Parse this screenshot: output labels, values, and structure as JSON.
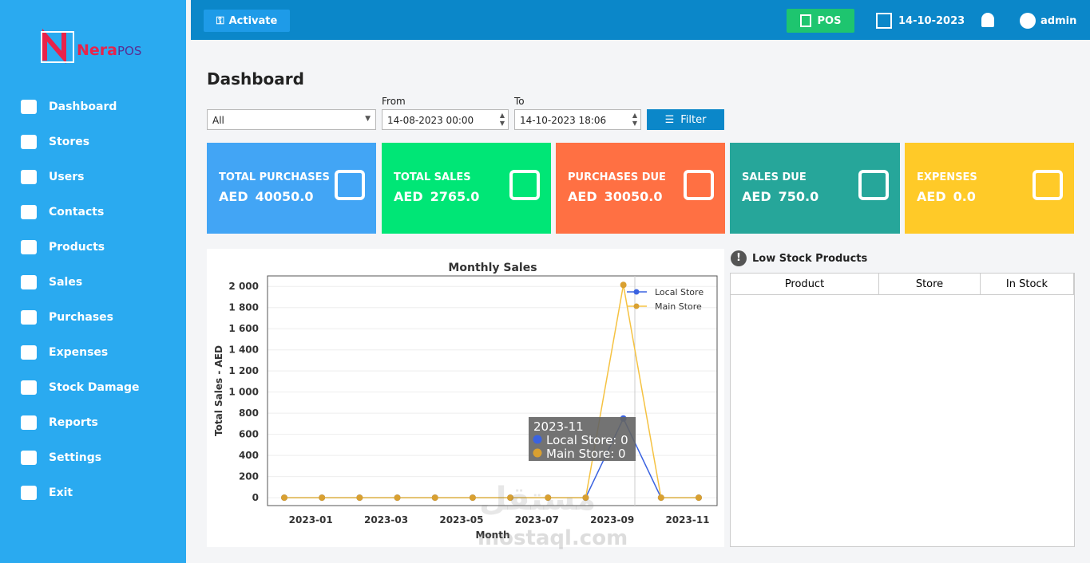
{
  "logo": {
    "brand": "Nera",
    "suffix": "POS"
  },
  "menu": [
    "Dashboard",
    "Stores",
    "Users",
    "Contacts",
    "Products",
    "Sales",
    "Purchases",
    "Expenses",
    "Stock Damage",
    "Reports",
    "Settings",
    "Exit"
  ],
  "topbar": {
    "activate": "Activate",
    "pos": "POS",
    "date": "14-10-2023",
    "user": "admin"
  },
  "page_title": "Dashboard",
  "filters": {
    "store": "All",
    "from_label": "From",
    "from": "14-08-2023 00:00",
    "to_label": "To",
    "to": "14-10-2023 18:06",
    "button": "Filter"
  },
  "cards": [
    {
      "label": "TOTAL PURCHASES",
      "currency": "AED",
      "amount": "40050.0",
      "color": "#42a5f5"
    },
    {
      "label": "TOTAL SALES",
      "currency": "AED",
      "amount": "2765.0",
      "color": "#00e676"
    },
    {
      "label": "PURCHASES DUE",
      "currency": "AED",
      "amount": "30050.0",
      "color": "#ff7043"
    },
    {
      "label": "SALES DUE",
      "currency": "AED",
      "amount": "750.0",
      "color": "#26a69a"
    },
    {
      "label": "EXPENSES",
      "currency": "AED",
      "amount": "0.0",
      "color": "#ffca28"
    }
  ],
  "chart_data": {
    "type": "line",
    "title": "Monthly Sales",
    "x_label": "Month",
    "y_label": "Total Sales - AED",
    "categories": [
      null,
      "2023-01",
      null,
      "2023-03",
      null,
      "2023-05",
      null,
      "2023-07",
      null,
      "2023-09",
      null,
      "2023-11"
    ],
    "series": [
      {
        "name": "Local Store",
        "color": "#3b63e0",
        "values": [
          0,
          0,
          0,
          0,
          0,
          0,
          0,
          0,
          0,
          750,
          0,
          0
        ]
      },
      {
        "name": "Main Store",
        "color": "#f5c242",
        "values": [
          0,
          0,
          0,
          0,
          0,
          0,
          0,
          0,
          0,
          2015,
          0,
          0
        ]
      }
    ],
    "ylim": [
      -75,
      2100
    ],
    "yticks": [
      0,
      200,
      400,
      600,
      800,
      {
        "value": 1000,
        "label": "1 000"
      },
      {
        "value": 1200,
        "label": "1 200"
      },
      {
        "value": 1400,
        "label": "1 400"
      },
      {
        "value": 1600,
        "label": "1 600"
      },
      {
        "value": 1800,
        "label": "1 800"
      },
      {
        "value": 2000,
        "label": "2 000"
      }
    ],
    "grid": true,
    "legend": "upper right"
  },
  "chart_tooltip": {
    "title": "2023-11",
    "items": [
      "Local Store: 0",
      "Main Store: 0"
    ]
  },
  "low_stock": {
    "title": "Low Stock Products",
    "columns": [
      "Product",
      "Store",
      "In Stock"
    ]
  },
  "watermark": [
    "مستقل",
    "mostaql.com"
  ]
}
